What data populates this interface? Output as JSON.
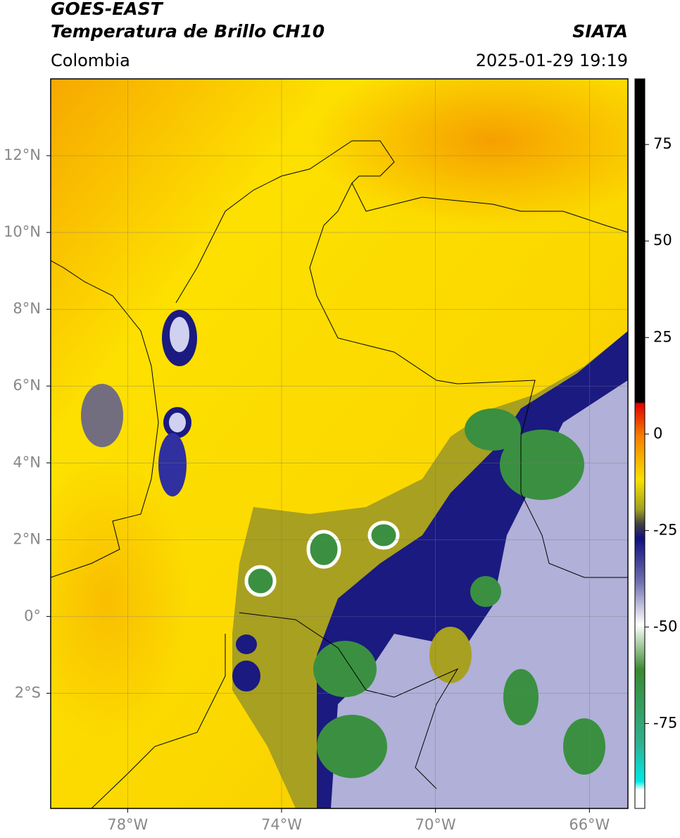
{
  "header": {
    "title": "GOES-EAST",
    "subtitle": "Temperatura de Brillo CH10",
    "source": "SIATA",
    "region": "Colombia",
    "datetime": "2025-01-29 19:19"
  },
  "map": {
    "xlim": [
      -80,
      -65
    ],
    "ylim": [
      -5,
      14
    ],
    "xticks": [
      {
        "value": -78,
        "label": "78°W"
      },
      {
        "value": -74,
        "label": "74°W"
      },
      {
        "value": -70,
        "label": "70°W"
      },
      {
        "value": -66,
        "label": "66°W"
      }
    ],
    "yticks": [
      {
        "value": 12,
        "label": "12°N"
      },
      {
        "value": 10,
        "label": "10°N"
      },
      {
        "value": 8,
        "label": "8°N"
      },
      {
        "value": 6,
        "label": "6°N"
      },
      {
        "value": 4,
        "label": "4°N"
      },
      {
        "value": 2,
        "label": "2°N"
      },
      {
        "value": 0,
        "label": "0°"
      },
      {
        "value": -2,
        "label": "2°S"
      }
    ]
  },
  "colorbar": {
    "lim": [
      -97,
      92
    ],
    "ticks": [
      75,
      50,
      25,
      0,
      -25,
      -50,
      -75
    ]
  }
}
